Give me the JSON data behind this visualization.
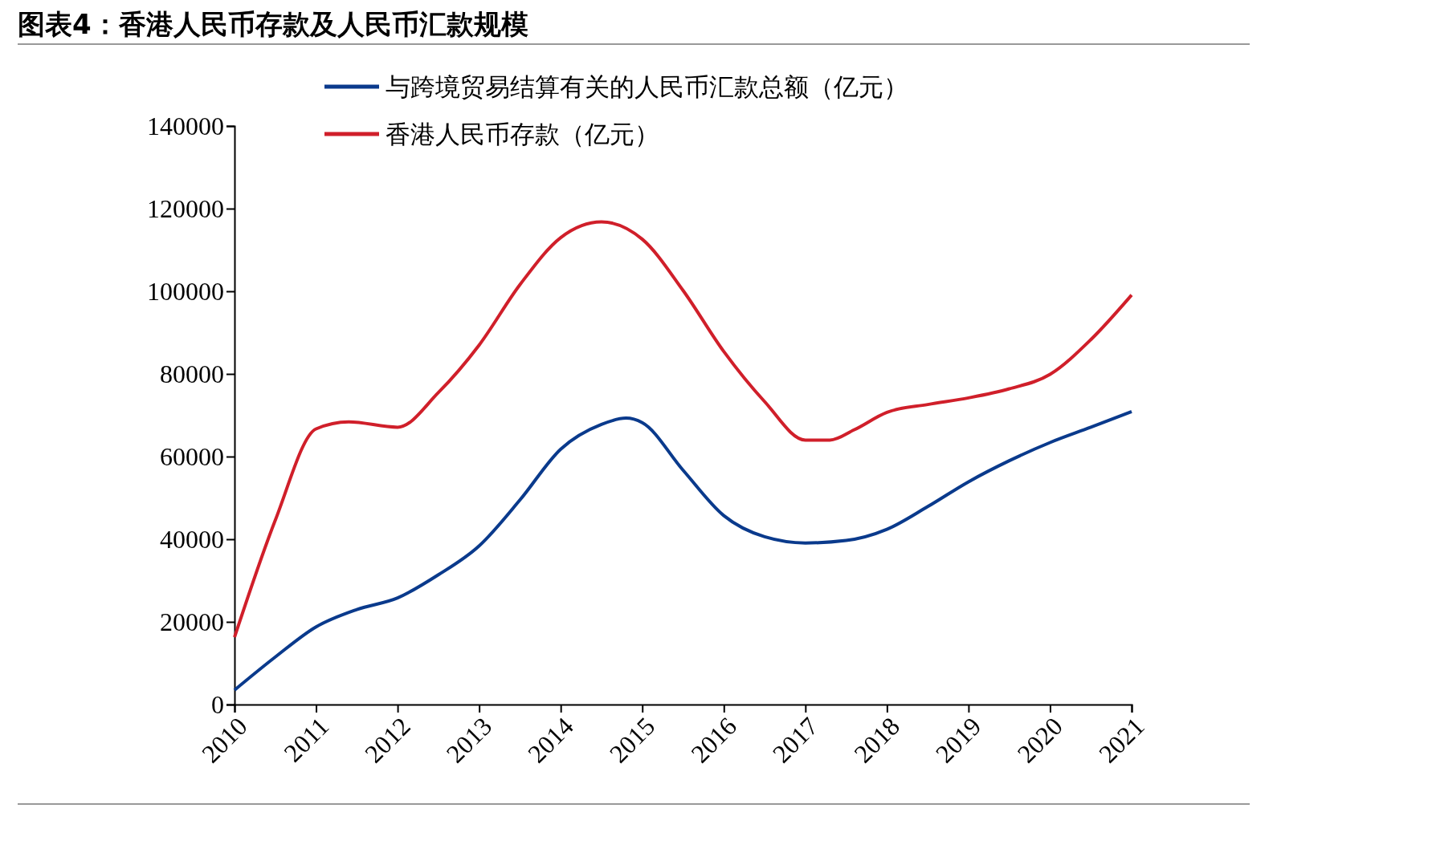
{
  "chart_data": {
    "type": "line",
    "title": "图表4：香港人民币存款及人民币汇款规模",
    "xlim": [
      2010,
      2021
    ],
    "xticks": [
      2010,
      2011,
      2012,
      2013,
      2014,
      2015,
      2016,
      2017,
      2018,
      2019,
      2020,
      2021
    ],
    "ylim": [
      0,
      140000
    ],
    "yticks": [
      0,
      20000,
      40000,
      60000,
      80000,
      100000,
      120000,
      140000
    ],
    "grid": false,
    "legend": "top",
    "marker": "none",
    "line_style": "solid",
    "series": [
      {
        "name": "与跨境贸易结算有关的人民币汇款总额（亿元）",
        "color": "#0a3a8c",
        "x": [
          2010,
          2010.5,
          2011,
          2011.5,
          2012,
          2012.5,
          2013,
          2013.5,
          2014,
          2014.5,
          2014.8,
          2015,
          2015.5,
          2016,
          2016.5,
          2017,
          2017.5,
          2018,
          2018.5,
          2019,
          2019.5,
          2020,
          2020.5,
          2021
        ],
        "values": [
          3500,
          11500,
          18800,
          23000,
          25800,
          31400,
          38400,
          49500,
          61800,
          67800,
          69300,
          68200,
          56700,
          45700,
          40600,
          39100,
          39700,
          42400,
          47900,
          53900,
          59000,
          63400,
          67100,
          70900
        ]
      },
      {
        "name": "香港人民币存款（亿元）",
        "color": "#d01f2a",
        "x": [
          2010,
          2010.5,
          2011,
          2011.4,
          2012,
          2012.5,
          2013,
          2013.5,
          2014,
          2014.5,
          2015,
          2015.5,
          2016,
          2016.5,
          2017,
          2017.3,
          2017.6,
          2018,
          2018.5,
          2019,
          2019.5,
          2020,
          2020.5,
          2021
        ],
        "values": [
          16300,
          44600,
          66700,
          68400,
          67100,
          75500,
          87000,
          101600,
          113000,
          116800,
          112600,
          100200,
          85400,
          73300,
          64000,
          64000,
          66500,
          70700,
          72600,
          74200,
          76400,
          79900,
          88300,
          99100
        ]
      }
    ]
  }
}
